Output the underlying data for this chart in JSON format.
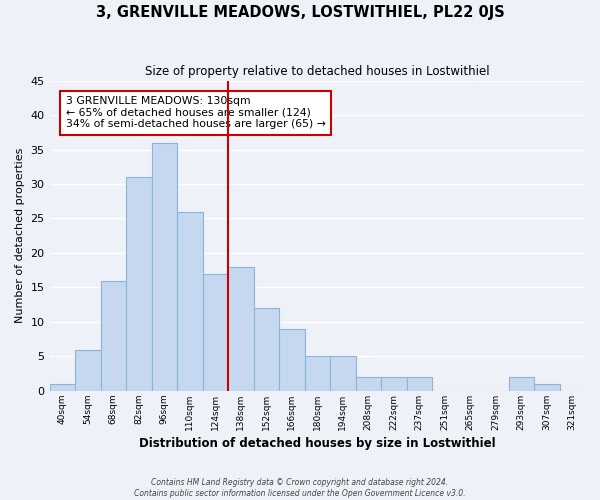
{
  "title": "3, GRENVILLE MEADOWS, LOSTWITHIEL, PL22 0JS",
  "subtitle": "Size of property relative to detached houses in Lostwithiel",
  "xlabel": "Distribution of detached houses by size in Lostwithiel",
  "ylabel": "Number of detached properties",
  "bin_labels": [
    "40sqm",
    "54sqm",
    "68sqm",
    "82sqm",
    "96sqm",
    "110sqm",
    "124sqm",
    "138sqm",
    "152sqm",
    "166sqm",
    "180sqm",
    "194sqm",
    "208sqm",
    "222sqm",
    "237sqm",
    "251sqm",
    "265sqm",
    "279sqm",
    "293sqm",
    "307sqm",
    "321sqm"
  ],
  "bar_values": [
    1,
    6,
    16,
    31,
    36,
    26,
    17,
    18,
    12,
    9,
    5,
    5,
    2,
    2,
    2,
    0,
    0,
    0,
    2,
    1,
    0
  ],
  "bar_color": "#c5d8f0",
  "bar_edge_color": "#8ab4d8",
  "reference_line_x": 6.5,
  "ylim": [
    0,
    45
  ],
  "yticks": [
    0,
    5,
    10,
    15,
    20,
    25,
    30,
    35,
    40,
    45
  ],
  "annotation_title": "3 GRENVILLE MEADOWS: 130sqm",
  "annotation_line1": "← 65% of detached houses are smaller (124)",
  "annotation_line2": "34% of semi-detached houses are larger (65) →",
  "annotation_box_color": "#ffffff",
  "annotation_box_edge_color": "#cc0000",
  "footer_line1": "Contains HM Land Registry data © Crown copyright and database right 2024.",
  "footer_line2": "Contains public sector information licensed under the Open Government Licence v3.0.",
  "background_color": "#eef2f8",
  "grid_color": "#ffffff",
  "ref_line_color": "#cc0000"
}
